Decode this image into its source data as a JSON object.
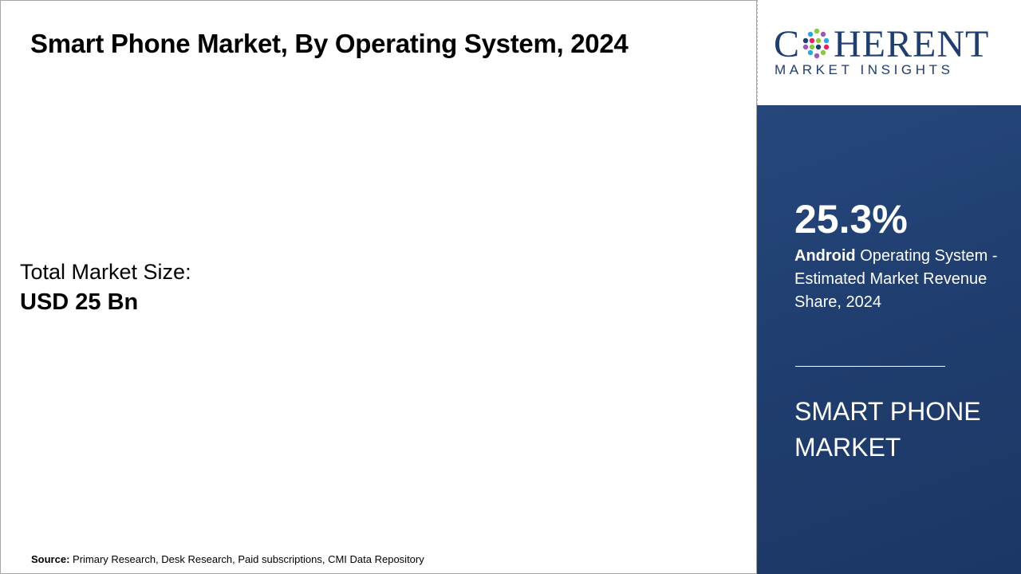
{
  "header": {
    "title": "Smart Phone Market, By Operating System, 2024"
  },
  "market_size": {
    "label": "Total Market Size:",
    "value": "USD 25 Bn"
  },
  "source": {
    "label": "Source:",
    "text": "Primary Research, Desk Research, Paid subscriptions, CMI Data Repository"
  },
  "logo": {
    "name_start": "C",
    "name_end": "HERENT",
    "tagline": "MARKET INSIGHTS"
  },
  "highlight": {
    "stat": "25.3%",
    "segment": "Android",
    "description": "Operating System - Estimated Market Revenue Share, 2024",
    "market": "SMART PHONE MARKET"
  }
}
